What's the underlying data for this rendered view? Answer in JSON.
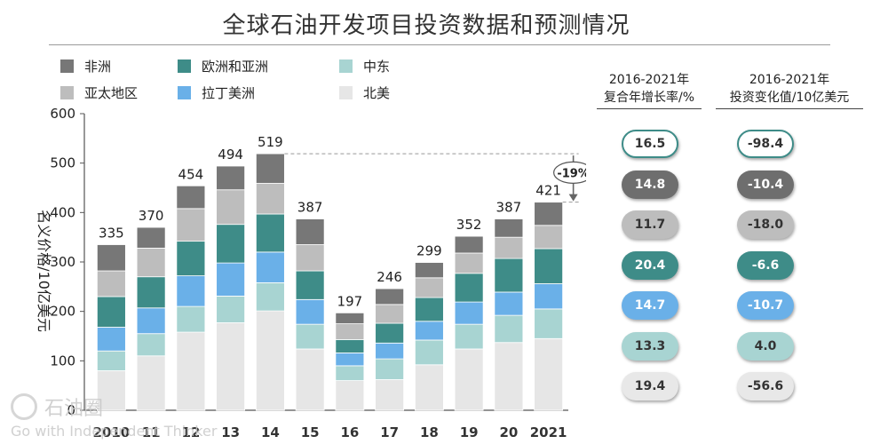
{
  "chart_data": {
    "type": "bar",
    "stacked": true,
    "title": "全球石油开发项目投资数据和预测情况",
    "ylabel": "名义价格/10亿美元",
    "xlabel": "",
    "ylim": [
      0,
      600
    ],
    "yticks": [
      0,
      100,
      200,
      300,
      400,
      500,
      600
    ],
    "categories": [
      "2010",
      "11",
      "12",
      "13",
      "14",
      "15",
      "16",
      "17",
      "18",
      "19",
      "20",
      "2021"
    ],
    "totals": [
      335,
      370,
      454,
      494,
      519,
      387,
      197,
      246,
      299,
      352,
      387,
      421
    ],
    "series": [
      {
        "name": "北美",
        "color": "#e6e6e6",
        "values": [
          80,
          110,
          158,
          177,
          201,
          124,
          60,
          62,
          92,
          124,
          137,
          145
        ]
      },
      {
        "name": "中东",
        "color": "#a8d4d2",
        "values": [
          40,
          45,
          52,
          54,
          57,
          50,
          30,
          42,
          50,
          50,
          55,
          60
        ]
      },
      {
        "name": "拉丁美洲",
        "color": "#6ab0e8",
        "values": [
          48,
          52,
          62,
          67,
          62,
          50,
          26,
          32,
          38,
          45,
          47,
          51
        ]
      },
      {
        "name": "欧洲和亚洲",
        "color": "#3e8c88",
        "values": [
          62,
          63,
          70,
          78,
          77,
          58,
          27,
          40,
          48,
          58,
          68,
          71
        ]
      },
      {
        "name": "亚太地区",
        "color": "#bdbdbd",
        "values": [
          52,
          58,
          66,
          70,
          62,
          53,
          32,
          38,
          40,
          41,
          43,
          47
        ]
      },
      {
        "name": "非洲",
        "color": "#777777",
        "values": [
          53,
          42,
          46,
          48,
          60,
          52,
          22,
          32,
          31,
          34,
          37,
          47
        ]
      }
    ],
    "annotation": "-19%",
    "legend_order": [
      "非洲",
      "欧洲和亚洲",
      "中东",
      "亚太地区",
      "拉丁美洲",
      "北美"
    ]
  },
  "panels": {
    "cagr_header": [
      "2016-2021年",
      "复合年增长率/%"
    ],
    "change_header": [
      "2016-2021年",
      "投资变化值/10亿美元"
    ],
    "rows": [
      {
        "region": "北美",
        "cagr": "16.5",
        "change": "-98.4",
        "fill": "#ffffff",
        "text": "#333333",
        "border": "#3e8c88"
      },
      {
        "region": "非洲",
        "cagr": "14.8",
        "change": "-10.4",
        "fill": "#6e6e6e",
        "text": "#ffffff",
        "border": "none"
      },
      {
        "region": "亚太地区",
        "cagr": "11.7",
        "change": "-18.0",
        "fill": "#bdbdbd",
        "text": "#333333",
        "border": "none"
      },
      {
        "region": "欧洲和亚洲",
        "cagr": "20.4",
        "change": "-6.6",
        "fill": "#3e8c88",
        "text": "#ffffff",
        "border": "none"
      },
      {
        "region": "拉丁美洲",
        "cagr": "14.7",
        "change": "-10.7",
        "fill": "#6ab0e8",
        "text": "#ffffff",
        "border": "none"
      },
      {
        "region": "中东",
        "cagr": "13.3",
        "change": "4.0",
        "fill": "#a8d4d2",
        "text": "#333333",
        "border": "none"
      },
      {
        "region": "北美2",
        "cagr": "19.4",
        "change": "-56.6",
        "fill": "#e8e8e8",
        "text": "#333333",
        "border": "none"
      }
    ]
  },
  "watermark": {
    "cn": "石油圈",
    "en": "Go with Independent Thinker"
  }
}
